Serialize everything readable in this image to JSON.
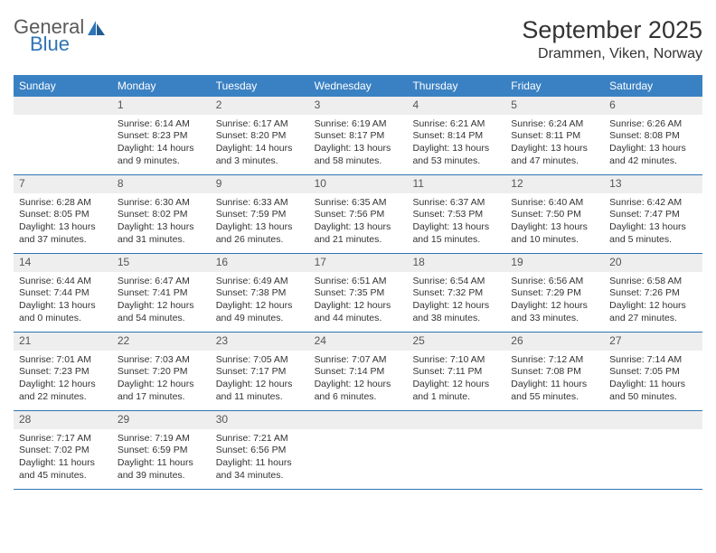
{
  "logo": {
    "line1": "General",
    "line2": "Blue"
  },
  "title": "September 2025",
  "location": "Drammen, Viken, Norway",
  "colors": {
    "header_bg": "#3a81c3",
    "header_text": "#ffffff",
    "accent": "#2f74b5",
    "daynum_bg": "#eeeeee",
    "body_text": "#333333"
  },
  "weekdays": [
    "Sunday",
    "Monday",
    "Tuesday",
    "Wednesday",
    "Thursday",
    "Friday",
    "Saturday"
  ],
  "weeks": [
    [
      {
        "n": "",
        "sr": "",
        "ss": "",
        "dl": ""
      },
      {
        "n": "1",
        "sr": "Sunrise: 6:14 AM",
        "ss": "Sunset: 8:23 PM",
        "dl": "Daylight: 14 hours and 9 minutes."
      },
      {
        "n": "2",
        "sr": "Sunrise: 6:17 AM",
        "ss": "Sunset: 8:20 PM",
        "dl": "Daylight: 14 hours and 3 minutes."
      },
      {
        "n": "3",
        "sr": "Sunrise: 6:19 AM",
        "ss": "Sunset: 8:17 PM",
        "dl": "Daylight: 13 hours and 58 minutes."
      },
      {
        "n": "4",
        "sr": "Sunrise: 6:21 AM",
        "ss": "Sunset: 8:14 PM",
        "dl": "Daylight: 13 hours and 53 minutes."
      },
      {
        "n": "5",
        "sr": "Sunrise: 6:24 AM",
        "ss": "Sunset: 8:11 PM",
        "dl": "Daylight: 13 hours and 47 minutes."
      },
      {
        "n": "6",
        "sr": "Sunrise: 6:26 AM",
        "ss": "Sunset: 8:08 PM",
        "dl": "Daylight: 13 hours and 42 minutes."
      }
    ],
    [
      {
        "n": "7",
        "sr": "Sunrise: 6:28 AM",
        "ss": "Sunset: 8:05 PM",
        "dl": "Daylight: 13 hours and 37 minutes."
      },
      {
        "n": "8",
        "sr": "Sunrise: 6:30 AM",
        "ss": "Sunset: 8:02 PM",
        "dl": "Daylight: 13 hours and 31 minutes."
      },
      {
        "n": "9",
        "sr": "Sunrise: 6:33 AM",
        "ss": "Sunset: 7:59 PM",
        "dl": "Daylight: 13 hours and 26 minutes."
      },
      {
        "n": "10",
        "sr": "Sunrise: 6:35 AM",
        "ss": "Sunset: 7:56 PM",
        "dl": "Daylight: 13 hours and 21 minutes."
      },
      {
        "n": "11",
        "sr": "Sunrise: 6:37 AM",
        "ss": "Sunset: 7:53 PM",
        "dl": "Daylight: 13 hours and 15 minutes."
      },
      {
        "n": "12",
        "sr": "Sunrise: 6:40 AM",
        "ss": "Sunset: 7:50 PM",
        "dl": "Daylight: 13 hours and 10 minutes."
      },
      {
        "n": "13",
        "sr": "Sunrise: 6:42 AM",
        "ss": "Sunset: 7:47 PM",
        "dl": "Daylight: 13 hours and 5 minutes."
      }
    ],
    [
      {
        "n": "14",
        "sr": "Sunrise: 6:44 AM",
        "ss": "Sunset: 7:44 PM",
        "dl": "Daylight: 13 hours and 0 minutes."
      },
      {
        "n": "15",
        "sr": "Sunrise: 6:47 AM",
        "ss": "Sunset: 7:41 PM",
        "dl": "Daylight: 12 hours and 54 minutes."
      },
      {
        "n": "16",
        "sr": "Sunrise: 6:49 AM",
        "ss": "Sunset: 7:38 PM",
        "dl": "Daylight: 12 hours and 49 minutes."
      },
      {
        "n": "17",
        "sr": "Sunrise: 6:51 AM",
        "ss": "Sunset: 7:35 PM",
        "dl": "Daylight: 12 hours and 44 minutes."
      },
      {
        "n": "18",
        "sr": "Sunrise: 6:54 AM",
        "ss": "Sunset: 7:32 PM",
        "dl": "Daylight: 12 hours and 38 minutes."
      },
      {
        "n": "19",
        "sr": "Sunrise: 6:56 AM",
        "ss": "Sunset: 7:29 PM",
        "dl": "Daylight: 12 hours and 33 minutes."
      },
      {
        "n": "20",
        "sr": "Sunrise: 6:58 AM",
        "ss": "Sunset: 7:26 PM",
        "dl": "Daylight: 12 hours and 27 minutes."
      }
    ],
    [
      {
        "n": "21",
        "sr": "Sunrise: 7:01 AM",
        "ss": "Sunset: 7:23 PM",
        "dl": "Daylight: 12 hours and 22 minutes."
      },
      {
        "n": "22",
        "sr": "Sunrise: 7:03 AM",
        "ss": "Sunset: 7:20 PM",
        "dl": "Daylight: 12 hours and 17 minutes."
      },
      {
        "n": "23",
        "sr": "Sunrise: 7:05 AM",
        "ss": "Sunset: 7:17 PM",
        "dl": "Daylight: 12 hours and 11 minutes."
      },
      {
        "n": "24",
        "sr": "Sunrise: 7:07 AM",
        "ss": "Sunset: 7:14 PM",
        "dl": "Daylight: 12 hours and 6 minutes."
      },
      {
        "n": "25",
        "sr": "Sunrise: 7:10 AM",
        "ss": "Sunset: 7:11 PM",
        "dl": "Daylight: 12 hours and 1 minute."
      },
      {
        "n": "26",
        "sr": "Sunrise: 7:12 AM",
        "ss": "Sunset: 7:08 PM",
        "dl": "Daylight: 11 hours and 55 minutes."
      },
      {
        "n": "27",
        "sr": "Sunrise: 7:14 AM",
        "ss": "Sunset: 7:05 PM",
        "dl": "Daylight: 11 hours and 50 minutes."
      }
    ],
    [
      {
        "n": "28",
        "sr": "Sunrise: 7:17 AM",
        "ss": "Sunset: 7:02 PM",
        "dl": "Daylight: 11 hours and 45 minutes."
      },
      {
        "n": "29",
        "sr": "Sunrise: 7:19 AM",
        "ss": "Sunset: 6:59 PM",
        "dl": "Daylight: 11 hours and 39 minutes."
      },
      {
        "n": "30",
        "sr": "Sunrise: 7:21 AM",
        "ss": "Sunset: 6:56 PM",
        "dl": "Daylight: 11 hours and 34 minutes."
      },
      {
        "n": "",
        "sr": "",
        "ss": "",
        "dl": ""
      },
      {
        "n": "",
        "sr": "",
        "ss": "",
        "dl": ""
      },
      {
        "n": "",
        "sr": "",
        "ss": "",
        "dl": ""
      },
      {
        "n": "",
        "sr": "",
        "ss": "",
        "dl": ""
      }
    ]
  ]
}
